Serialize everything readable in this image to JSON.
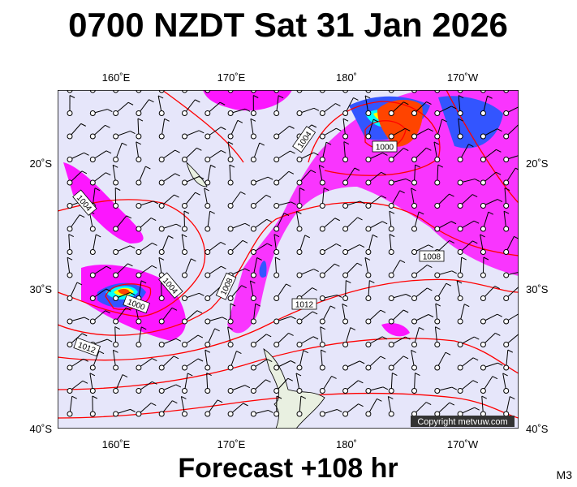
{
  "header": {
    "title": "0700 NZDT Sat 31 Jan 2026"
  },
  "map": {
    "lon_labels": [
      "160˚E",
      "170˚E",
      "180˚",
      "170˚W"
    ],
    "lat_labels": [
      "20˚S",
      "30˚S",
      "40˚S"
    ],
    "isobar_labels": [
      "1004",
      "1000",
      "1008",
      "1012",
      "1008",
      "1004",
      "1000",
      "1012",
      "1004"
    ],
    "copyright": "Copyright metvuw.com"
  },
  "footer": {
    "forecast": "Forecast +108 hr",
    "model": "M3"
  }
}
